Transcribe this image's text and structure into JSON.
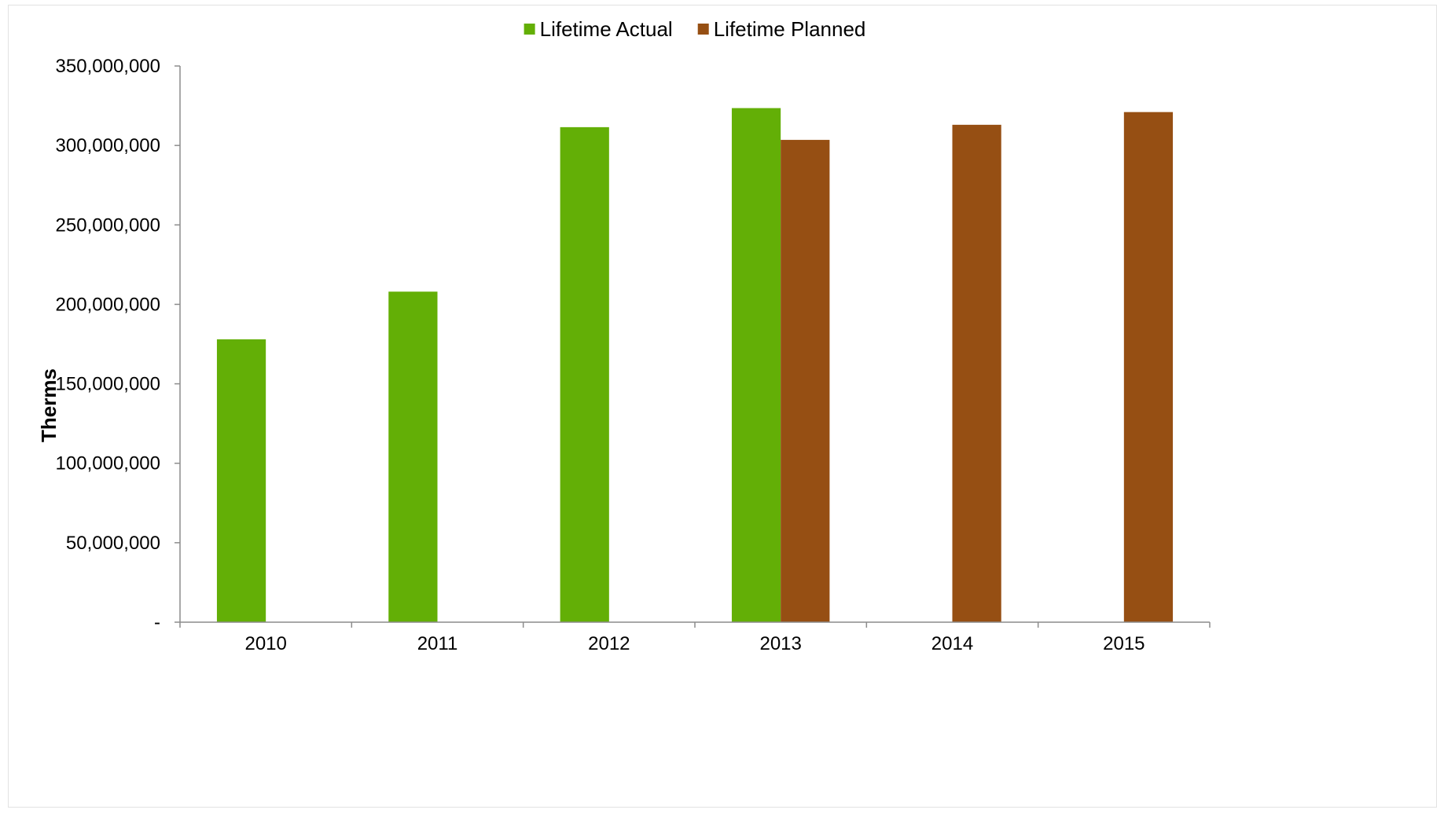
{
  "chart_data": {
    "type": "bar",
    "title": "",
    "xlabel": "",
    "ylabel": "Therms",
    "categories": [
      "2010",
      "2011",
      "2012",
      "2013",
      "2014",
      "2015"
    ],
    "series": [
      {
        "name": "Lifetime Actual",
        "color": "#63AF06",
        "values": [
          178000000,
          208000000,
          311500000,
          323500000,
          null,
          null
        ]
      },
      {
        "name": "Lifetime Planned",
        "color": "#964F13",
        "values": [
          null,
          null,
          null,
          303500000,
          313000000,
          321000000
        ]
      }
    ],
    "ylim": [
      0,
      350000000
    ],
    "y_ticks": [
      0,
      50000000,
      100000000,
      150000000,
      200000000,
      250000000,
      300000000,
      350000000
    ],
    "y_tick_labels": [
      "-",
      "50,000,000",
      "100,000,000",
      "150,000,000",
      "200,000,000",
      "250,000,000",
      "300,000,000",
      "350,000,000"
    ],
    "grid": false,
    "legend_position": "top-center"
  }
}
